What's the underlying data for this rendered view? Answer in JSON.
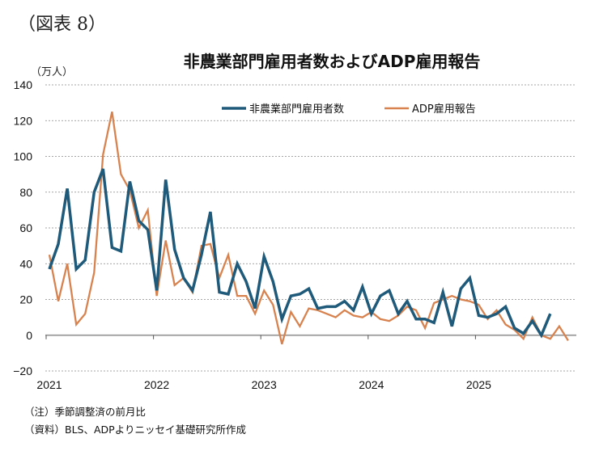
{
  "figure_label": "（図表 8）",
  "notes": {
    "note": "（注）季節調整済の前月比",
    "source": "（資料）BLS、ADPよりニッセイ基礎研究所作成"
  },
  "colors": {
    "nfp": "#1f5a7a",
    "adp": "#d8834f",
    "grid": "#888888",
    "axis": "#999999"
  },
  "chart_data": {
    "type": "line",
    "title": "非農業部門雇用者数およびADP雇用報告",
    "ylabel": "（万人）",
    "xlabel": "",
    "ylim": [
      -20,
      140
    ],
    "yticks": [
      140,
      120,
      100,
      80,
      60,
      40,
      20,
      0,
      -20
    ],
    "ytick_labels": [
      "140",
      "120",
      "100",
      "80",
      "60",
      "40",
      "20",
      "0",
      "−20"
    ],
    "xtick_labels": [
      "2021",
      "2022",
      "2023",
      "2024",
      "2025"
    ],
    "x_start": "2021-01",
    "x_unit": "month",
    "grid": true,
    "legend_position": "top-right",
    "series": [
      {
        "name": "非農業部門雇用者数",
        "color_key": "nfp",
        "values": [
          37,
          51,
          82,
          37,
          42,
          80,
          93,
          49,
          47,
          86,
          64,
          59,
          25,
          87,
          48,
          32,
          25,
          45,
          69,
          24,
          23,
          40,
          30,
          15,
          44,
          30,
          9,
          22,
          23,
          26,
          15,
          16,
          16,
          19,
          14,
          27,
          12,
          22,
          25,
          12,
          19,
          9,
          9,
          7,
          24,
          5,
          26,
          32,
          11,
          10,
          12,
          16,
          4,
          1,
          8,
          0,
          12
        ]
      },
      {
        "name": "ADP雇用報告",
        "color_key": "adp",
        "values": [
          45,
          19,
          40,
          6,
          12,
          35,
          101,
          125,
          90,
          81,
          60,
          70,
          22,
          53,
          28,
          32,
          24,
          50,
          51,
          32,
          45,
          22,
          22,
          12,
          25,
          17,
          -5,
          13,
          5,
          15,
          14,
          12,
          10,
          14,
          11,
          10,
          13,
          9,
          8,
          11,
          16,
          14,
          4,
          18,
          20,
          22,
          20,
          19,
          17,
          9,
          14,
          6,
          3,
          -2,
          10,
          0,
          -2,
          5,
          -3
        ]
      }
    ]
  }
}
